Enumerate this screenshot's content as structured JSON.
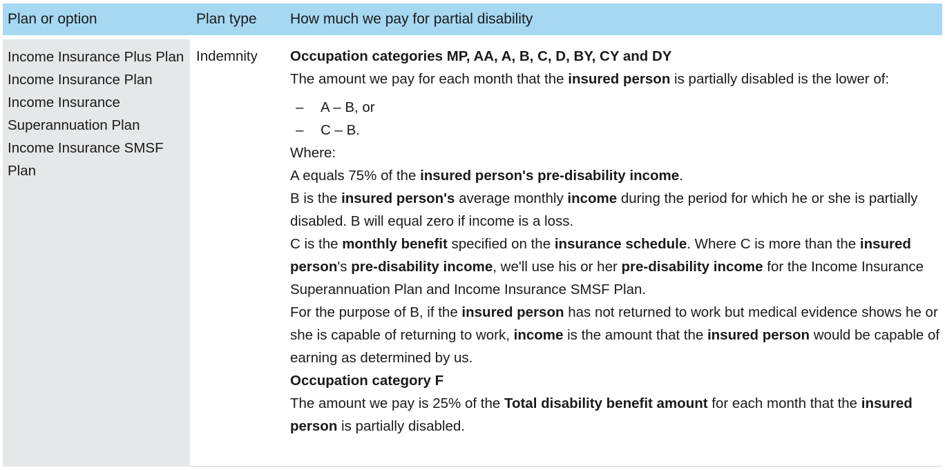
{
  "header": {
    "col1": "Plan or option",
    "col2": "Plan type",
    "col3": "How much we pay for partial disability"
  },
  "row": {
    "plans": [
      "Income Insurance Plus Plan",
      "Income Insurance Plan",
      "Income Insurance Superannuation Plan",
      "Income Insurance SMSF Plan"
    ],
    "plan_type": "Indemnity",
    "sub1": "Occupation categories MP, AA, A, B, C, D, BY, CY and DY",
    "p1": {
      "a": "The amount we pay for each month that the ",
      "b": "insured person",
      "c": " is partially disabled is the lower of:"
    },
    "bullets": [
      {
        "dash": "–",
        "text": "A – B, or"
      },
      {
        "dash": "–",
        "text": "C – B."
      }
    ],
    "where": "Where:",
    "pA": {
      "a": "A equals 75% of the ",
      "b": "insured person's pre-disability income",
      "c": "."
    },
    "pB": {
      "a": "B is the ",
      "b": "insured person's",
      "c": " average monthly ",
      "d": "income",
      "e": " during the period for which he or she is partially disabled. B will equal zero if income is a loss."
    },
    "pC": {
      "a": "C is the ",
      "b": "monthly benefit",
      "c": " specified on the ",
      "d": "insurance schedule",
      "e": ". Where C is more than the ",
      "f": "insured person",
      "g": "'s ",
      "h": "pre-disability income",
      "i": ", we'll use his or her ",
      "j": "pre-disability income",
      "k": " for the Income Insurance Superannuation Plan and Income Insurance SMSF Plan."
    },
    "pD": {
      "a": "For the purpose of B, if the ",
      "b": "insured person",
      "c": " has not returned to work but medical evidence shows he or she is capable of returning to work, ",
      "d": "income",
      "e": " is the amount that the ",
      "f": "insured person",
      "g": " would be capable of earning as determined by us."
    },
    "sub2": "Occupation category F",
    "pF": {
      "a": "The amount we pay is 25% of the ",
      "b": "Total disability benefit amount",
      "c": " for each month that the ",
      "d": "insured person",
      "e": " is partially disabled."
    }
  }
}
